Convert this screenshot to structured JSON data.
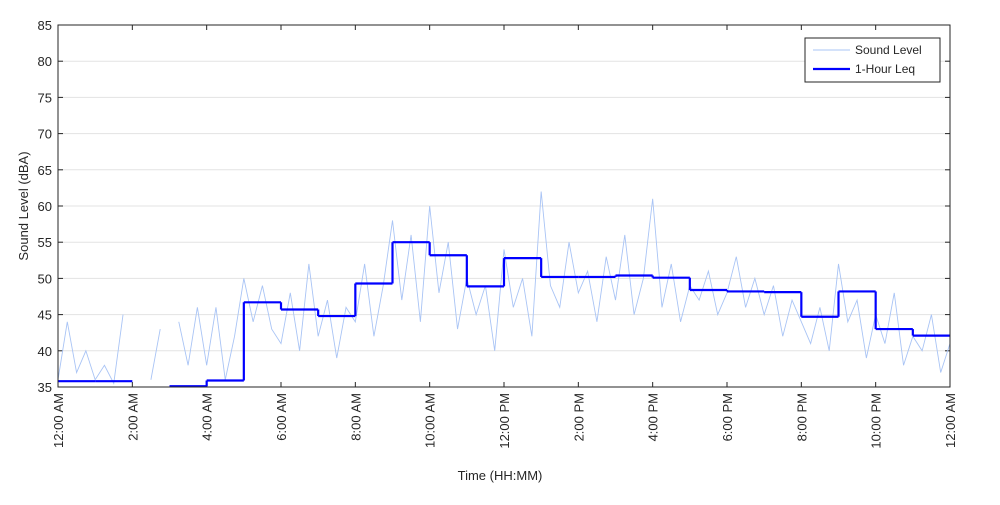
{
  "chart_data": {
    "type": "line",
    "x_label": "Time (HH:MM)",
    "y_label": "Sound Level (dBA)",
    "xlim": [
      0,
      24
    ],
    "ylim": [
      35,
      85
    ],
    "xticks": [
      {
        "value": 0,
        "label": "12:00 AM"
      },
      {
        "value": 2,
        "label": "2:00 AM"
      },
      {
        "value": 4,
        "label": "4:00 AM"
      },
      {
        "value": 6,
        "label": "6:00 AM"
      },
      {
        "value": 8,
        "label": "8:00 AM"
      },
      {
        "value": 10,
        "label": "10:00 AM"
      },
      {
        "value": 12,
        "label": "12:00 PM"
      },
      {
        "value": 14,
        "label": "2:00 PM"
      },
      {
        "value": 16,
        "label": "4:00 PM"
      },
      {
        "value": 18,
        "label": "6:00 PM"
      },
      {
        "value": 20,
        "label": "8:00 PM"
      },
      {
        "value": 22,
        "label": "10:00 PM"
      },
      {
        "value": 24,
        "label": "12:00 AM"
      }
    ],
    "yticks": [
      35,
      40,
      45,
      50,
      55,
      60,
      65,
      70,
      75,
      80,
      85
    ],
    "grid": true,
    "legend": "upper right",
    "series": [
      {
        "name": "Sound Level",
        "color": "#a9c4f5",
        "style": "line",
        "x": [
          0,
          0.25,
          0.5,
          0.75,
          1,
          1.25,
          1.5,
          1.75,
          2,
          2.25,
          2.5,
          2.75,
          3,
          3.25,
          3.5,
          3.75,
          4,
          4.25,
          4.5,
          4.75,
          5,
          5.25,
          5.5,
          5.75,
          6,
          6.25,
          6.5,
          6.75,
          7,
          7.25,
          7.5,
          7.75,
          8,
          8.25,
          8.5,
          8.75,
          9,
          9.25,
          9.5,
          9.75,
          10,
          10.25,
          10.5,
          10.75,
          11,
          11.25,
          11.5,
          11.75,
          12,
          12.25,
          12.5,
          12.75,
          13,
          13.25,
          13.5,
          13.75,
          14,
          14.25,
          14.5,
          14.75,
          15,
          15.25,
          15.5,
          15.75,
          16,
          16.25,
          16.5,
          16.75,
          17,
          17.25,
          17.5,
          17.75,
          18,
          18.25,
          18.5,
          18.75,
          19,
          19.25,
          19.5,
          19.75,
          20,
          20.25,
          20.5,
          20.75,
          21,
          21.25,
          21.5,
          21.75,
          22,
          22.25,
          22.5,
          22.75,
          23,
          23.25,
          23.5,
          23.75,
          24
        ],
        "values": [
          36,
          44,
          37,
          40,
          36,
          38,
          35.5,
          45,
          null,
          null,
          36,
          43,
          null,
          44,
          38,
          46,
          38,
          46,
          36,
          42,
          50,
          44,
          49,
          43,
          41,
          48,
          40,
          52,
          42,
          47,
          39,
          46,
          44,
          52,
          42,
          49,
          58,
          47,
          56,
          44,
          60,
          48,
          55,
          43,
          50,
          45,
          49,
          40,
          54,
          46,
          50,
          42,
          62,
          49,
          46,
          55,
          48,
          51,
          44,
          53,
          47,
          56,
          45,
          50,
          61,
          46,
          52,
          44,
          49,
          47,
          51,
          45,
          48,
          53,
          46,
          50,
          45,
          49,
          42,
          47,
          44,
          41,
          46,
          40,
          52,
          44,
          47,
          39,
          45,
          41,
          48,
          38,
          42,
          40,
          45,
          37,
          41
        ]
      },
      {
        "name": "1-Hour Leq",
        "color": "#0000ff",
        "style": "step",
        "x": [
          0,
          1,
          2,
          3,
          4,
          5,
          6,
          7,
          8,
          9,
          10,
          11,
          12,
          13,
          14,
          15,
          16,
          17,
          18,
          19,
          20,
          21,
          22,
          23
        ],
        "values": [
          35.8,
          35.8,
          null,
          35.1,
          35.9,
          46.7,
          45.7,
          44.8,
          49.3,
          55.0,
          53.2,
          48.9,
          52.8,
          50.2,
          50.2,
          50.4,
          50.1,
          48.4,
          48.2,
          48.1,
          44.7,
          48.2,
          43.0,
          42.1
        ]
      }
    ]
  }
}
